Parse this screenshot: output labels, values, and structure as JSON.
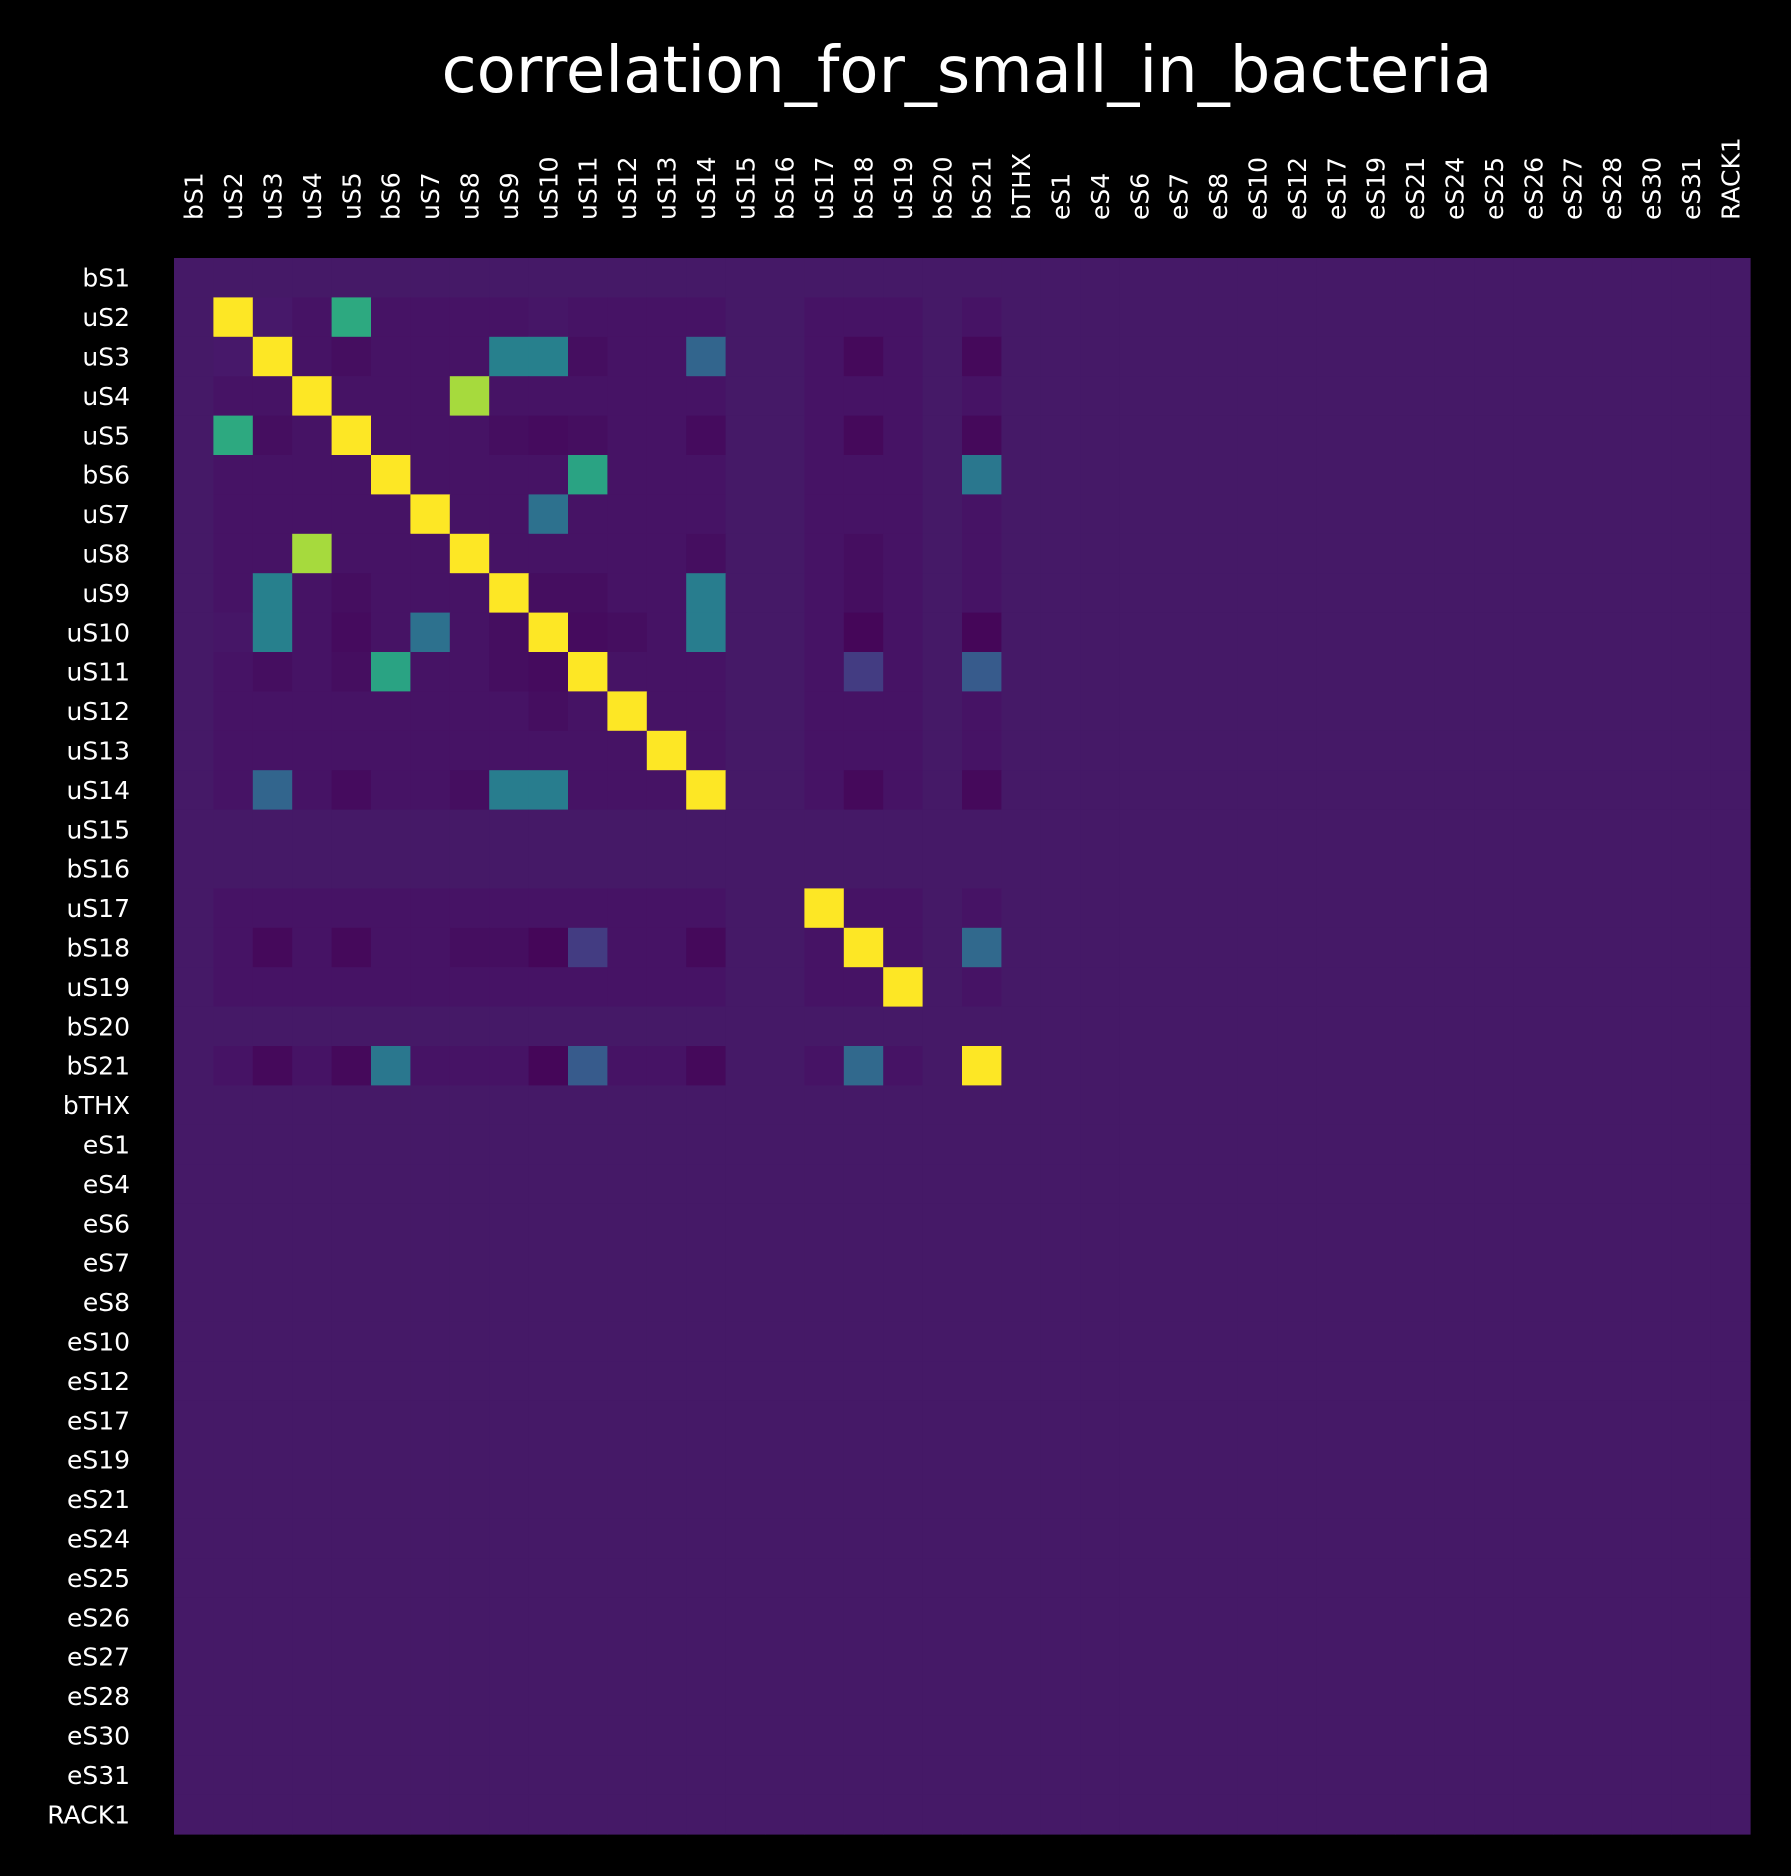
{
  "chart_data": {
    "type": "heatmap",
    "title": "correlation_for_small_in_bacteria",
    "colormap": "viridis",
    "background_color": "#000000",
    "fill_color": "#451967",
    "labels": [
      "bS1",
      "uS2",
      "uS3",
      "uS4",
      "uS5",
      "bS6",
      "uS7",
      "uS8",
      "uS9",
      "uS10",
      "uS11",
      "uS12",
      "uS13",
      "uS14",
      "uS15",
      "bS16",
      "uS17",
      "bS18",
      "uS19",
      "bS20",
      "bS21",
      "bTHX",
      "eS1",
      "eS4",
      "eS6",
      "eS7",
      "eS8",
      "eS10",
      "eS12",
      "eS17",
      "eS19",
      "eS21",
      "eS24",
      "eS25",
      "eS26",
      "eS27",
      "eS28",
      "eS30",
      "eS31",
      "RACK1"
    ],
    "present_rows": [
      "uS2",
      "uS3",
      "uS4",
      "uS5",
      "bS6",
      "uS7",
      "uS8",
      "uS9",
      "uS10",
      "uS11",
      "uS12",
      "uS13",
      "uS14",
      "uS17",
      "bS18",
      "uS19",
      "bS21"
    ],
    "base_value": 0.02,
    "missing_value": 0.08,
    "cells": [
      [
        "uS2",
        "uS5",
        0.69
      ],
      [
        "uS3",
        "uS9",
        0.52
      ],
      [
        "uS3",
        "uS10",
        0.52
      ],
      [
        "uS3",
        "uS14",
        0.38
      ],
      [
        "uS4",
        "uS8",
        0.9
      ],
      [
        "bS6",
        "uS11",
        0.67
      ],
      [
        "bS6",
        "bS21",
        0.47
      ],
      [
        "uS7",
        "uS10",
        0.44
      ],
      [
        "uS9",
        "uS14",
        0.5
      ],
      [
        "uS10",
        "uS14",
        0.5
      ],
      [
        "uS11",
        "bS18",
        0.18
      ],
      [
        "uS11",
        "bS21",
        0.33
      ],
      [
        "bS18",
        "bS21",
        0.4
      ],
      [
        "uS3",
        "uS3",
        1.0
      ]
    ],
    "weak_cells": [
      [
        "uS2",
        "uS3",
        0.04
      ],
      [
        "uS2",
        "uS4",
        0.02
      ],
      [
        "uS2",
        "uS10",
        0.03
      ],
      [
        "uS2",
        "uS14",
        0.02
      ],
      [
        "uS2",
        "bS21",
        0.02
      ],
      [
        "uS3",
        "uS4",
        0.02
      ],
      [
        "uS3",
        "uS5",
        0.0
      ],
      [
        "uS3",
        "uS11",
        0.0
      ],
      [
        "uS3",
        "bS18",
        -0.02
      ],
      [
        "uS3",
        "bS21",
        -0.02
      ],
      [
        "uS5",
        "uS9",
        0.0
      ],
      [
        "uS5",
        "uS10",
        -0.01
      ],
      [
        "uS5",
        "uS14",
        -0.01
      ],
      [
        "uS5",
        "bS18",
        -0.02
      ],
      [
        "uS5",
        "bS21",
        -0.02
      ],
      [
        "uS8",
        "uS14",
        0.0
      ],
      [
        "uS8",
        "bS18",
        0.0
      ],
      [
        "uS9",
        "uS10",
        0.0
      ],
      [
        "uS9",
        "uS11",
        0.0
      ],
      [
        "uS9",
        "bS18",
        0.0
      ],
      [
        "uS10",
        "uS11",
        -0.01
      ],
      [
        "uS10",
        "uS12",
        0.0
      ],
      [
        "uS10",
        "bS18",
        -0.03
      ],
      [
        "uS10",
        "bS21",
        -0.03
      ],
      [
        "uS14",
        "bS18",
        -0.02
      ],
      [
        "uS14",
        "bS21",
        -0.02
      ],
      [
        "uS5",
        "bS6",
        0.02
      ],
      [
        "uS5",
        "uS11",
        0.0
      ]
    ]
  }
}
